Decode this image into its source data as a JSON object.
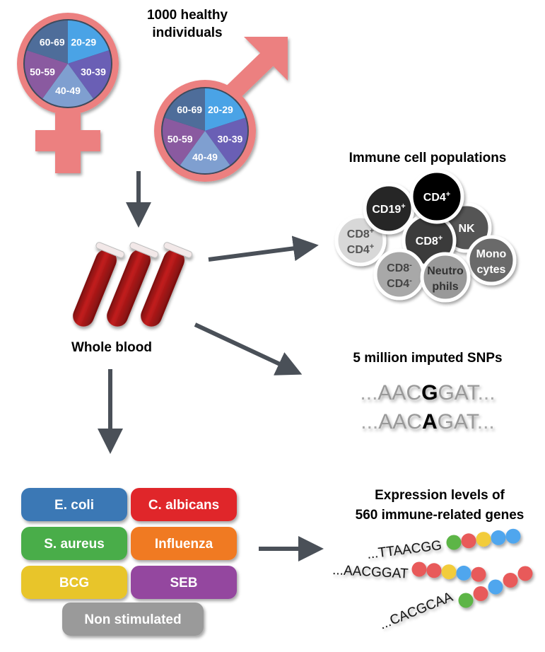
{
  "title": {
    "line1": "1000 healthy individuals",
    "line1a": "1000 healthy",
    "line1b": "individuals"
  },
  "age_groups": [
    "20-29",
    "30-39",
    "40-49",
    "50-59",
    "60-69"
  ],
  "age_colors": [
    "#4aa3e6",
    "#6a5fb5",
    "#7f9fd0",
    "#8a5aa0",
    "#4e6d9a"
  ],
  "symbol_color": "#ec8080",
  "arrow_color": "#4a5058",
  "blood": {
    "label": "Whole blood"
  },
  "cells": {
    "title": "Immune cell populations",
    "items": [
      {
        "l1": "CD8",
        "s1": "+",
        "l2": "CD4",
        "s2": "+",
        "fill": "#d8d8d8",
        "text": "#555555"
      },
      {
        "l1": "CD19",
        "s1": "+",
        "fill": "#262626",
        "text": "#ffffff"
      },
      {
        "l1": "NK",
        "fill": "#555555",
        "text": "#ffffff"
      },
      {
        "l1": "CD8",
        "s1": "+",
        "fill": "#3a3a3a",
        "text": "#ffffff"
      },
      {
        "l1": "CD4",
        "s1": "+",
        "fill": "#000000",
        "text": "#ffffff"
      },
      {
        "l1": "CD8",
        "s1": "-",
        "l2": "CD4",
        "s2": "-",
        "fill": "#a8a8a8",
        "text": "#444444"
      },
      {
        "l1": "Mono",
        "l2": "cytes",
        "fill": "#6a6a6a",
        "text": "#ffffff"
      },
      {
        "l1": "Neutro",
        "l2": "phils",
        "fill": "#999999",
        "text": "#333333"
      }
    ]
  },
  "snps": {
    "title": "5 million imputed SNPs",
    "seq1": {
      "pre": "...",
      "left": "AAC",
      "variant": "G",
      "right": "GAT",
      "post": "..."
    },
    "seq2": {
      "pre": "...",
      "left": "AAC",
      "variant": "A",
      "right": "GAT",
      "post": "..."
    }
  },
  "stimuli": [
    {
      "label": "E. coli",
      "color": "#3a78b5"
    },
    {
      "label": "C. albicans",
      "color": "#e0262c"
    },
    {
      "label": "S. aureus",
      "color": "#4aad4a"
    },
    {
      "label": "Influenza",
      "color": "#f07a22"
    },
    {
      "label": "BCG",
      "color": "#e8c52a"
    },
    {
      "label": "SEB",
      "color": "#94469f"
    },
    {
      "label": "Non stimulated",
      "color": "#9a9a9a"
    }
  ],
  "expression": {
    "title1": "Expression levels of",
    "title2": "560 immune-related genes",
    "seqs": [
      {
        "text": "...TTAACGG",
        "beads": [
          "green",
          "red",
          "yellow",
          "blue",
          "blue"
        ]
      },
      {
        "text": "...AACGGAT",
        "beads": [
          "red",
          "red",
          "yellow",
          "blue",
          "red"
        ]
      },
      {
        "text": "...CACGCAA",
        "beads": [
          "green",
          "red",
          "blue",
          "red",
          "red"
        ]
      }
    ],
    "bead_colors": {
      "green": "#5db546",
      "red": "#e85a5a",
      "yellow": "#f2cc3a",
      "blue": "#4fa6ee"
    }
  }
}
